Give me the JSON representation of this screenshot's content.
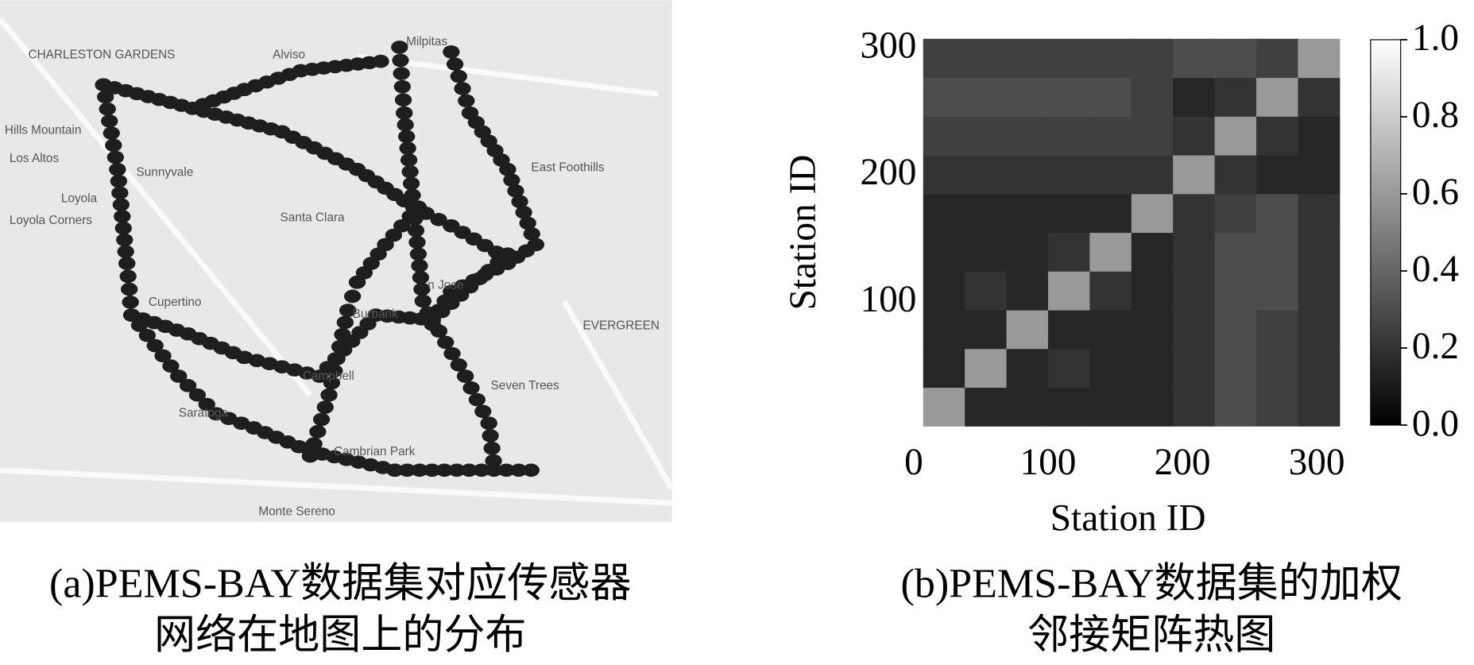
{
  "map": {
    "labels": [
      "CHARLESTON GARDENS",
      "Alviso",
      "Milpitas",
      "Hills Mountain",
      "Los Altos",
      "Loyola",
      "Loyola Corners",
      "Sunnyvale",
      "Santa Clara",
      "n Jose",
      "East Foothills",
      "Cupertino",
      "Burbank",
      "EVERGREEN",
      "Campbell",
      "Seven Trees",
      "Saratoga",
      "Cambrian Park",
      "Monte Sereno"
    ]
  },
  "chart_data": {
    "type": "heatmap",
    "xlabel": "Station ID",
    "ylabel": "Station ID",
    "xlim": [
      0,
      310
    ],
    "ylim": [
      0,
      305
    ],
    "xticks": [
      0,
      100,
      200,
      300
    ],
    "yticks": [
      100,
      200,
      300
    ],
    "values": [
      [
        0.6,
        0.15,
        0.15,
        0.15,
        0.15,
        0.15,
        0.2,
        0.3,
        0.25,
        0.2
      ],
      [
        0.15,
        0.6,
        0.15,
        0.2,
        0.15,
        0.15,
        0.2,
        0.3,
        0.25,
        0.2
      ],
      [
        0.15,
        0.15,
        0.6,
        0.15,
        0.15,
        0.15,
        0.2,
        0.3,
        0.25,
        0.2
      ],
      [
        0.15,
        0.2,
        0.15,
        0.6,
        0.2,
        0.15,
        0.2,
        0.3,
        0.3,
        0.2
      ],
      [
        0.15,
        0.15,
        0.15,
        0.2,
        0.6,
        0.15,
        0.2,
        0.3,
        0.3,
        0.2
      ],
      [
        0.15,
        0.15,
        0.15,
        0.15,
        0.15,
        0.6,
        0.2,
        0.25,
        0.3,
        0.2
      ],
      [
        0.2,
        0.2,
        0.2,
        0.2,
        0.2,
        0.2,
        0.6,
        0.2,
        0.15,
        0.15
      ],
      [
        0.25,
        0.25,
        0.25,
        0.25,
        0.25,
        0.25,
        0.2,
        0.6,
        0.2,
        0.15
      ],
      [
        0.3,
        0.3,
        0.3,
        0.3,
        0.3,
        0.25,
        0.15,
        0.2,
        0.6,
        0.2
      ],
      [
        0.25,
        0.25,
        0.25,
        0.25,
        0.25,
        0.25,
        0.3,
        0.3,
        0.25,
        0.6
      ]
    ],
    "colorbar": {
      "lim": [
        0,
        1
      ],
      "colors": [
        "#000000",
        "#ffffff"
      ],
      "ticks": [
        {
          "value": 0,
          "label": "0.0"
        },
        0.2,
        0.4,
        0.6,
        0.8,
        {
          "value": 1,
          "label": "1.0"
        }
      ]
    }
  },
  "captions": {
    "a": [
      "(a)PEMS-BAY数据集对应传感器",
      "网络在地图上的分布"
    ],
    "b": [
      "(b)PEMS-BAY数据集的加权",
      "邻接矩阵热图"
    ]
  }
}
